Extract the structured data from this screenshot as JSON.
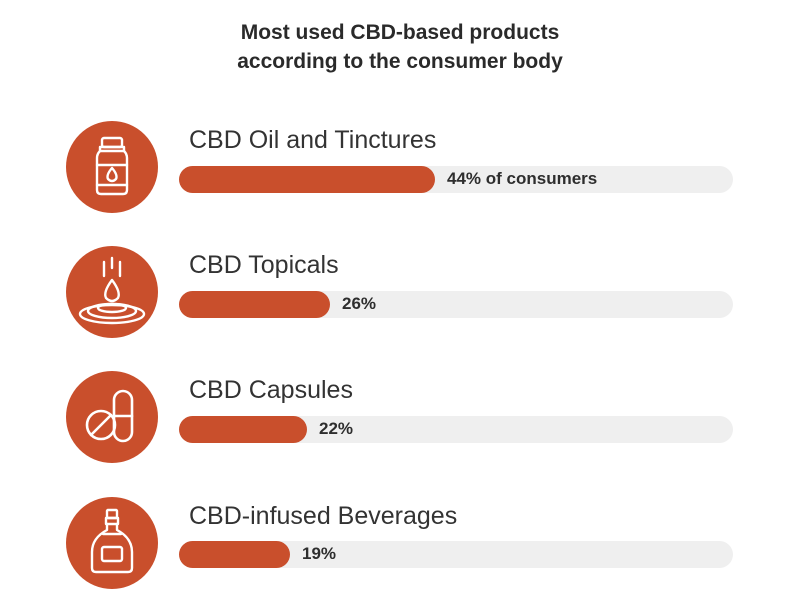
{
  "title": {
    "line1": "Most used CBD-based products",
    "line2": "according to the consumer body"
  },
  "colors": {
    "accent": "#c94f2c",
    "track": "#efefef",
    "text": "#2e2e2e"
  },
  "chart_data": {
    "type": "bar",
    "orientation": "horizontal",
    "title": "Most used CBD-based products according to the consumer body",
    "categories": [
      "CBD Oil and Tinctures",
      "CBD Topicals",
      "CBD Capsules",
      "CBD-infused Beverages"
    ],
    "values": [
      44,
      26,
      22,
      19
    ],
    "value_labels": [
      "44% of consumers",
      "26%",
      "22%",
      "19%"
    ],
    "unit": "%",
    "xlim": [
      0,
      100
    ],
    "icons": [
      "dropper-bottle-icon",
      "drop-ripple-icon",
      "pills-icon",
      "bottle-icon"
    ],
    "grid": false,
    "legend": "none"
  }
}
